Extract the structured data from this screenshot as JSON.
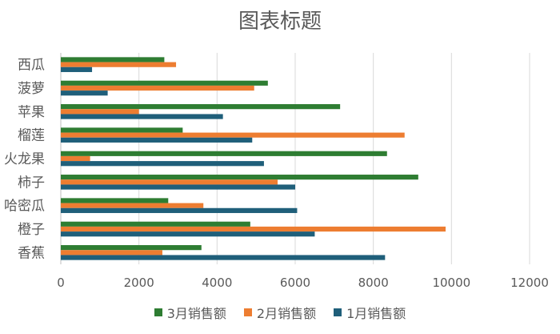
{
  "chart_data": {
    "type": "bar",
    "orientation": "horizontal",
    "title": "图表标题",
    "categories": [
      "香蕉",
      "橙子",
      "哈密瓜",
      "柿子",
      "火龙果",
      "榴莲",
      "苹果",
      "菠萝",
      "西瓜"
    ],
    "series": [
      {
        "name": "3月销售额",
        "color": "#2E7D32",
        "values": [
          3600,
          4850,
          2750,
          9150,
          8350,
          3120,
          7150,
          5300,
          2650
        ]
      },
      {
        "name": "2月销售额",
        "color": "#ED7D31",
        "values": [
          2600,
          9850,
          3650,
          5550,
          750,
          8800,
          2000,
          4950,
          2950
        ]
      },
      {
        "name": "1月销售额",
        "color": "#1F5F7A",
        "values": [
          8300,
          6500,
          6050,
          6000,
          5200,
          4900,
          4150,
          1200,
          800
        ]
      }
    ],
    "xlim": [
      0,
      12000
    ],
    "x_ticks": [
      0,
      2000,
      4000,
      6000,
      8000,
      10000,
      12000
    ],
    "grid": true,
    "legend_position": "bottom"
  }
}
